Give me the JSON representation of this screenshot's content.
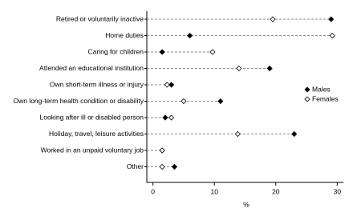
{
  "chart_data": {
    "type": "dot",
    "categories": [
      "Retired or voluntarily inactive",
      "Home duties",
      "Caring for children",
      "Attended an educational institution",
      "Own short-term illness or injury",
      "Own long-term health condition or disability",
      "Looking after ill or disabled person",
      "Holiday, travel, leisure activities",
      "Worked in an unpaid voluntary job",
      "Other"
    ],
    "series": [
      {
        "name": "Males",
        "color": "#000000",
        "values": [
          29,
          6,
          1.5,
          19,
          3,
          11,
          2,
          23,
          1.5,
          3.5
        ]
      },
      {
        "name": "Females",
        "color": "#ffffff",
        "values": [
          19.5,
          29.2,
          9.7,
          14,
          2.3,
          5,
          3,
          13.8,
          1.5,
          1.5
        ]
      }
    ],
    "xlim": [
      -1,
      31
    ],
    "xticks": [
      0,
      10,
      20,
      30
    ],
    "xlabel": "%",
    "legend": "right"
  }
}
